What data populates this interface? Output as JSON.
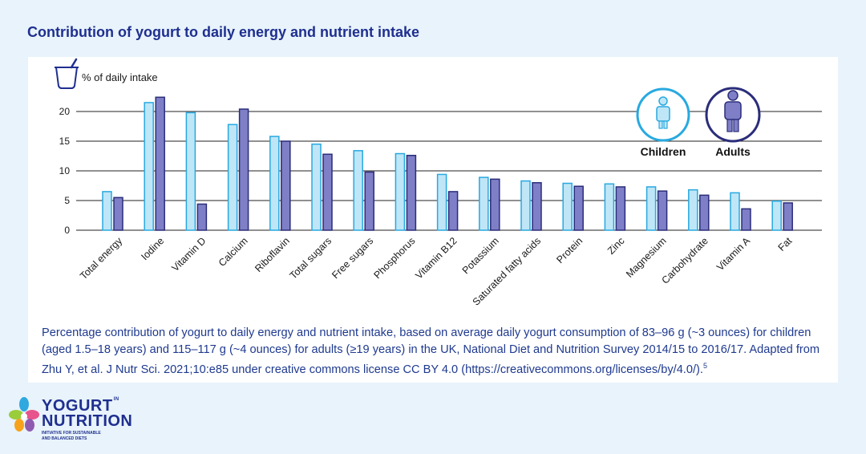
{
  "title": "Contribution of yogurt to daily energy and nutrient intake",
  "legend": {
    "children": "Children",
    "adults": "Adults"
  },
  "caption": {
    "text": "Percentage contribution of yogurt to daily energy and nutrient intake, based on average daily yogurt consumption of 83–96 g (~3 ounces) for children (aged 1.5–18 years) and 115–117 g (~4 ounces) for adults (≥19 years) in the UK, National Diet and Nutrition Survey 2014/15 to 2016/17. Adapted from Zhu Y, et al. J Nutr Sci. 2021;10:e85 under creative commons license CC BY 4.0 (https://creativecommons.org/licenses/by/4.0/).",
    "superscript": "5"
  },
  "logo": {
    "line1": "YOGURT",
    "line1_small": "IN",
    "line2": "NUTRITION",
    "tagline1": "INITIATIVE FOR SUSTAINABLE",
    "tagline2": "AND BALANCED DIETS"
  },
  "colors": {
    "children_fill": "#bfe6f7",
    "children_stroke": "#28a9e0",
    "adults_fill": "#7e7fc6",
    "adults_stroke": "#2b2d7a",
    "title": "#1f2f8f",
    "caption": "#1f3a8f"
  },
  "chart_data": {
    "type": "bar",
    "ylabel": "% of daily intake",
    "ylim": [
      0,
      22.5
    ],
    "yticks": [
      0,
      5,
      10,
      15,
      20
    ],
    "grid": true,
    "legend_position": "top-right",
    "categories": [
      "Total energy",
      "Iodine",
      "Vitamin D",
      "Calcium",
      "Riboflavin",
      "Total sugars",
      "Free sugars",
      "Phosphorus",
      "Vitamin B12",
      "Potassium",
      "Saturated fatty acids",
      "Protein",
      "Zinc",
      "Magnesium",
      "Carbohydrate",
      "Vitamin A",
      "Fat"
    ],
    "series": [
      {
        "name": "Children",
        "values": [
          6.5,
          21.5,
          19.8,
          17.8,
          15.8,
          14.5,
          13.4,
          12.9,
          9.4,
          8.9,
          8.3,
          7.9,
          7.8,
          7.3,
          6.8,
          6.3,
          4.9
        ]
      },
      {
        "name": "Adults",
        "values": [
          5.5,
          22.4,
          4.4,
          20.4,
          15.0,
          12.8,
          9.8,
          12.6,
          6.5,
          8.6,
          8.0,
          7.4,
          7.3,
          6.6,
          5.9,
          3.6,
          4.6
        ]
      }
    ]
  }
}
